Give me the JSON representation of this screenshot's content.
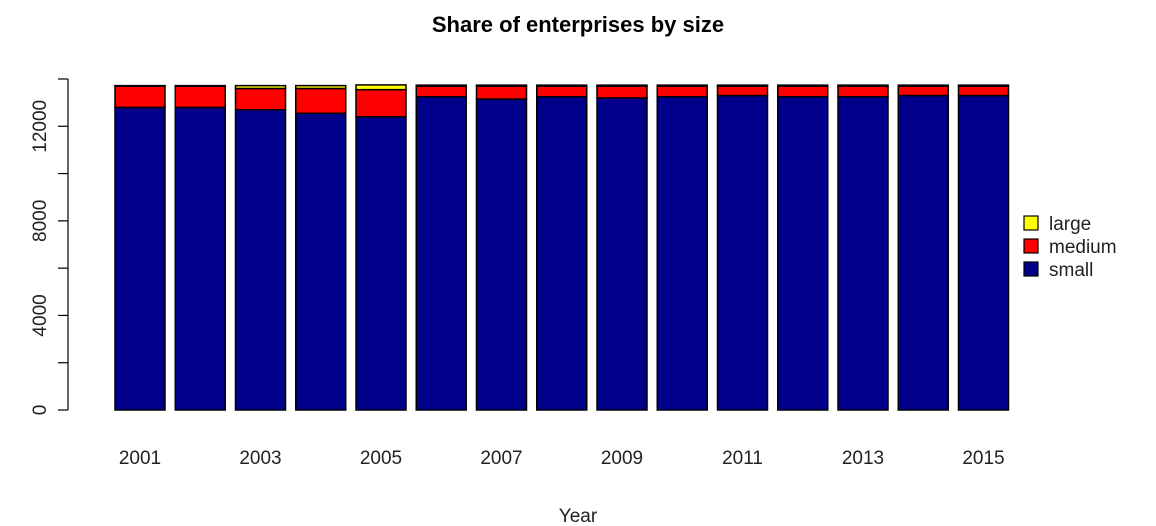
{
  "chart_data": {
    "type": "bar",
    "stacked": true,
    "title": "Share of enterprises by size",
    "xlabel": "Year",
    "ylabel": "",
    "ylim": [
      0,
      14000
    ],
    "y_ticks": [
      0,
      4000,
      8000,
      12000
    ],
    "categories": [
      "2001",
      "2002",
      "2003",
      "2004",
      "2005",
      "2006",
      "2007",
      "2008",
      "2009",
      "2010",
      "2011",
      "2012",
      "2013",
      "2014",
      "2015"
    ],
    "x_tick_labels_shown": [
      "2001",
      "2003",
      "2005",
      "2007",
      "2009",
      "2011",
      "2013",
      "2015"
    ],
    "series": [
      {
        "name": "small",
        "color": "#00008B",
        "values": [
          12800,
          12800,
          12700,
          12550,
          12400,
          13250,
          13150,
          13250,
          13200,
          13250,
          13300,
          13250,
          13250,
          13300,
          13300
        ]
      },
      {
        "name": "medium",
        "color": "#FF0000",
        "values": [
          900,
          900,
          900,
          1050,
          1150,
          450,
          550,
          450,
          500,
          450,
          400,
          450,
          450,
          400,
          400
        ]
      },
      {
        "name": "large",
        "color": "#FFFF00",
        "values": [
          20,
          20,
          120,
          120,
          200,
          40,
          40,
          40,
          40,
          40,
          40,
          40,
          40,
          40,
          40
        ]
      }
    ],
    "legend_order": [
      "large",
      "medium",
      "small"
    ],
    "legend_position": "right",
    "grid": false
  }
}
